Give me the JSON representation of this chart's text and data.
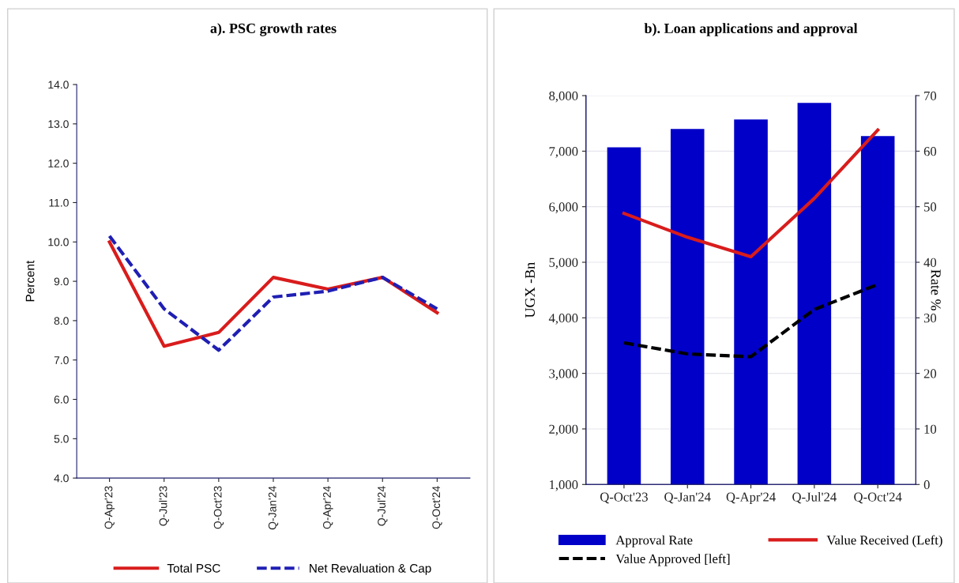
{
  "chart_data": [
    {
      "type": "line",
      "title": "a). PSC growth rates",
      "ylabel": "Percent",
      "categories": [
        "Q-Apr'23",
        "Q-Jul'23",
        "Q-Oct'23",
        "Q-Jan'24",
        "Q-Apr'24",
        "Q-Jul'24",
        "Q-Oct'24"
      ],
      "series": [
        {
          "name": "Total PSC",
          "color": "#d91c1c",
          "line_style": "solid",
          "values": [
            10.0,
            7.35,
            7.7,
            9.1,
            8.8,
            9.1,
            8.2
          ]
        },
        {
          "name": "Net Revaluation & Cap",
          "color": "#1f1fb4",
          "line_style": "dashed",
          "values": [
            10.15,
            8.3,
            7.25,
            8.6,
            8.75,
            9.1,
            8.3
          ]
        }
      ],
      "ylim": [
        4.0,
        14.0
      ],
      "yticks": [
        {
          "value": 4,
          "label": "4.0"
        },
        {
          "value": 5,
          "label": "5.0"
        },
        {
          "value": 6,
          "label": "6.0"
        },
        {
          "value": 7,
          "label": "7.0"
        },
        {
          "value": 8,
          "label": "8.0"
        },
        {
          "value": 9,
          "label": "9.0"
        },
        {
          "value": 10,
          "label": "10.0"
        },
        {
          "value": 11,
          "label": "11.0"
        },
        {
          "value": 12,
          "label": "12.0"
        },
        {
          "value": 13,
          "label": "13.0"
        },
        {
          "value": 14,
          "label": "14.0"
        }
      ],
      "grid": false,
      "legend": "bottom"
    },
    {
      "type": "bar",
      "title": "b). Loan applications and approval",
      "ylabel": "UGX -Bn",
      "y2label": "Rate %",
      "categories": [
        "Q-Oct'23",
        "Q-Jan'24",
        "Q-Apr'24",
        "Q-Jul'24",
        "Q-Oct'24"
      ],
      "series": [
        {
          "name": "Approval Rate",
          "type": "bar",
          "axis": "y2",
          "color": "#0000c8",
          "values": [
            60.7,
            64.0,
            65.7,
            68.7,
            62.7
          ]
        },
        {
          "name": "Value Received (Left)",
          "type": "line",
          "axis": "y",
          "color": "#d91c1c",
          "line_style": "solid",
          "values": [
            5880,
            5450,
            5100,
            6150,
            7380
          ]
        },
        {
          "name": "Value Approved [left]",
          "type": "line",
          "axis": "y",
          "color": "#000000",
          "line_style": "dashed",
          "values": [
            3550,
            3350,
            3300,
            4150,
            4600
          ]
        }
      ],
      "ylim": [
        1000,
        8000
      ],
      "yticks": [
        {
          "value": 1000,
          "label": "1,000"
        },
        {
          "value": 2000,
          "label": "2,000"
        },
        {
          "value": 3000,
          "label": "3,000"
        },
        {
          "value": 4000,
          "label": "4,000"
        },
        {
          "value": 5000,
          "label": "5,000"
        },
        {
          "value": 6000,
          "label": "6,000"
        },
        {
          "value": 7000,
          "label": "7,000"
        },
        {
          "value": 8000,
          "label": "8,000"
        }
      ],
      "y2lim": [
        0,
        70
      ],
      "y2ticks": [
        0,
        10,
        20,
        30,
        40,
        50,
        60,
        70
      ],
      "grid": "y",
      "legend": "bottom"
    }
  ]
}
